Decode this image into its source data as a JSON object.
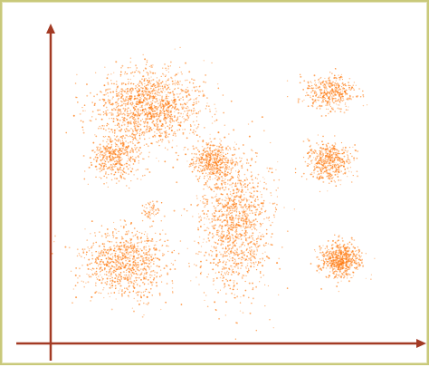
{
  "chart_data": {
    "type": "scatter",
    "title": "",
    "xlabel": "",
    "ylabel": "",
    "grid": false,
    "legend": false,
    "xlim": [
      0,
      100
    ],
    "ylim": [
      0,
      100
    ],
    "axis_color": "#a33a24",
    "frame_color": "#c9c97a",
    "point_color": "#ff7a0f",
    "clusters": [
      {
        "name": "",
        "center": [
          24,
          75
        ],
        "spread": [
          7.5,
          6.5
        ],
        "points": 1400
      },
      {
        "name": "",
        "center": [
          14,
          58
        ],
        "spread": [
          3.5,
          4.0
        ],
        "points": 420
      },
      {
        "name": "",
        "center": [
          17,
          22
        ],
        "spread": [
          6.0,
          6.0
        ],
        "points": 900
      },
      {
        "name": "",
        "center": [
          24,
          40
        ],
        "spread": [
          1.5,
          1.5
        ],
        "points": 60
      },
      {
        "name": "",
        "center": [
          42,
          57
        ],
        "spread": [
          3.0,
          3.0
        ],
        "points": 420
      },
      {
        "name": "",
        "center": [
          48,
          36
        ],
        "spread": [
          5.0,
          12.0
        ],
        "points": 1300
      },
      {
        "name": "",
        "center": [
          75,
          80
        ],
        "spread": [
          3.8,
          3.0
        ],
        "points": 420
      },
      {
        "name": "",
        "center": [
          75,
          57
        ],
        "spread": [
          3.3,
          3.3
        ],
        "points": 460
      },
      {
        "name": "",
        "center": [
          78,
          23
        ],
        "spread": [
          2.8,
          3.0
        ],
        "points": 620
      }
    ]
  }
}
